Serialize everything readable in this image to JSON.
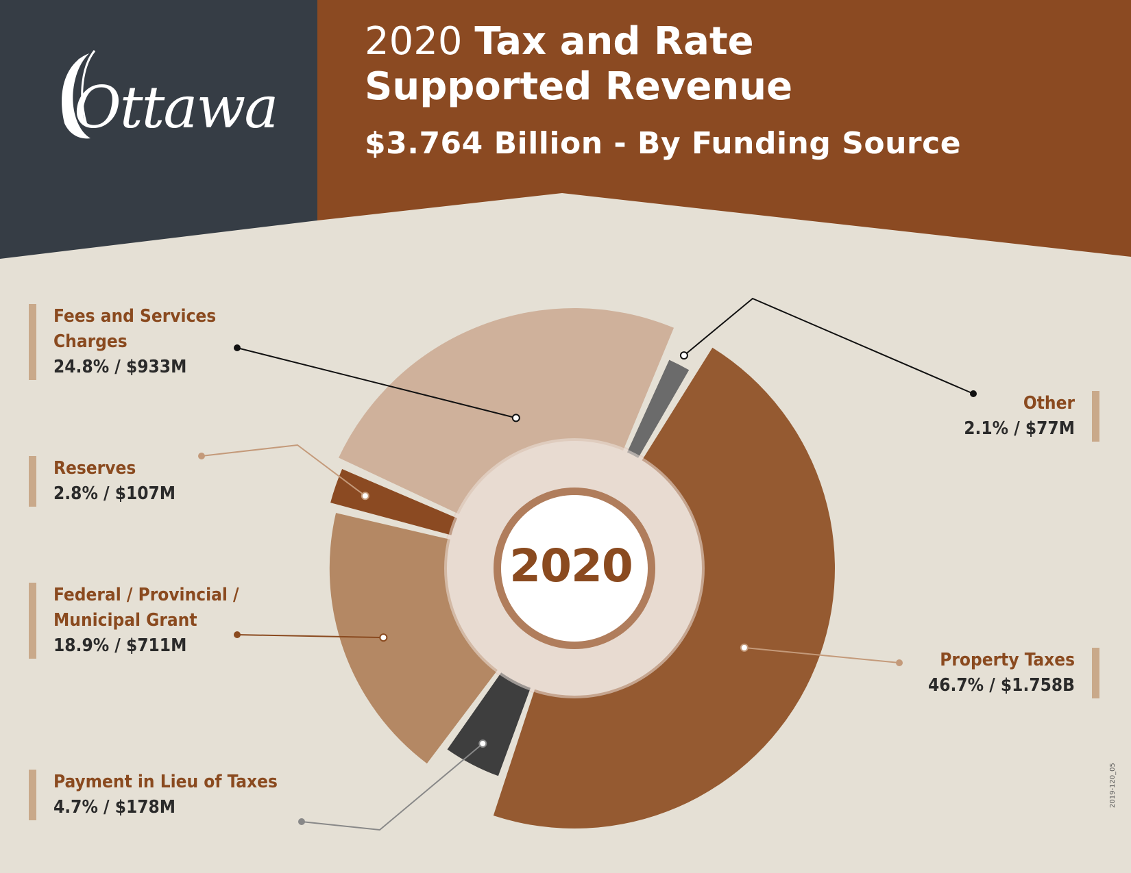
{
  "header": {
    "year": "2020",
    "title_rest": "Tax and Rate",
    "title_line2": "Supported Revenue",
    "subtitle": "$3.764 Billion - By Funding Source",
    "logo_text": "Ottawa"
  },
  "doc_code": "2019-120_05",
  "colors": {
    "dark_panel": "#363d45",
    "brown_panel": "#8b4a22",
    "background": "#e5e0d5",
    "property_taxes": "#955a31",
    "fees": "#cfb19b",
    "grants": "#b48864",
    "reserves": "#8b4a22",
    "pilt": "#3e3e3e",
    "other": "#6b6b6b"
  },
  "chart_data": {
    "type": "pie",
    "total": "$3.764 Billion",
    "center_label": "2020",
    "slices": [
      {
        "name": "Property Taxes",
        "percent": 46.7,
        "amount": "$1.758B",
        "label": "46.7% / $1.758B",
        "color": "#955a31",
        "r_outer": 1.0
      },
      {
        "name": "Payment in Lieu of Taxes",
        "percent": 4.7,
        "amount": "$178M",
        "label": "4.7% / $178M",
        "color": "#3e3e3e",
        "r_outer": 0.85
      },
      {
        "name": "Federal / Provincial / Municipal Grant",
        "name_lines": [
          "Federal / Provincial /",
          "Municipal Grant"
        ],
        "percent": 18.9,
        "amount": "$711M",
        "label": "18.9% / $711M",
        "color": "#b48864",
        "r_outer": 0.94
      },
      {
        "name": "Reserves",
        "percent": 2.8,
        "amount": "$107M",
        "label": "2.8% / $107M",
        "color": "#8b4a22",
        "r_outer": 0.97
      },
      {
        "name": "Fees and Services Charges",
        "name_lines": [
          "Fees and Services",
          "Charges"
        ],
        "percent": 24.8,
        "amount": "$933M",
        "label": "24.8% / $933M",
        "color": "#cfb19b",
        "r_outer": 1.0
      },
      {
        "name": "Other",
        "percent": 2.1,
        "amount": "$77M",
        "label": "2.1% / $77M",
        "color": "#6b6b6b",
        "r_outer": 0.88
      }
    ]
  }
}
